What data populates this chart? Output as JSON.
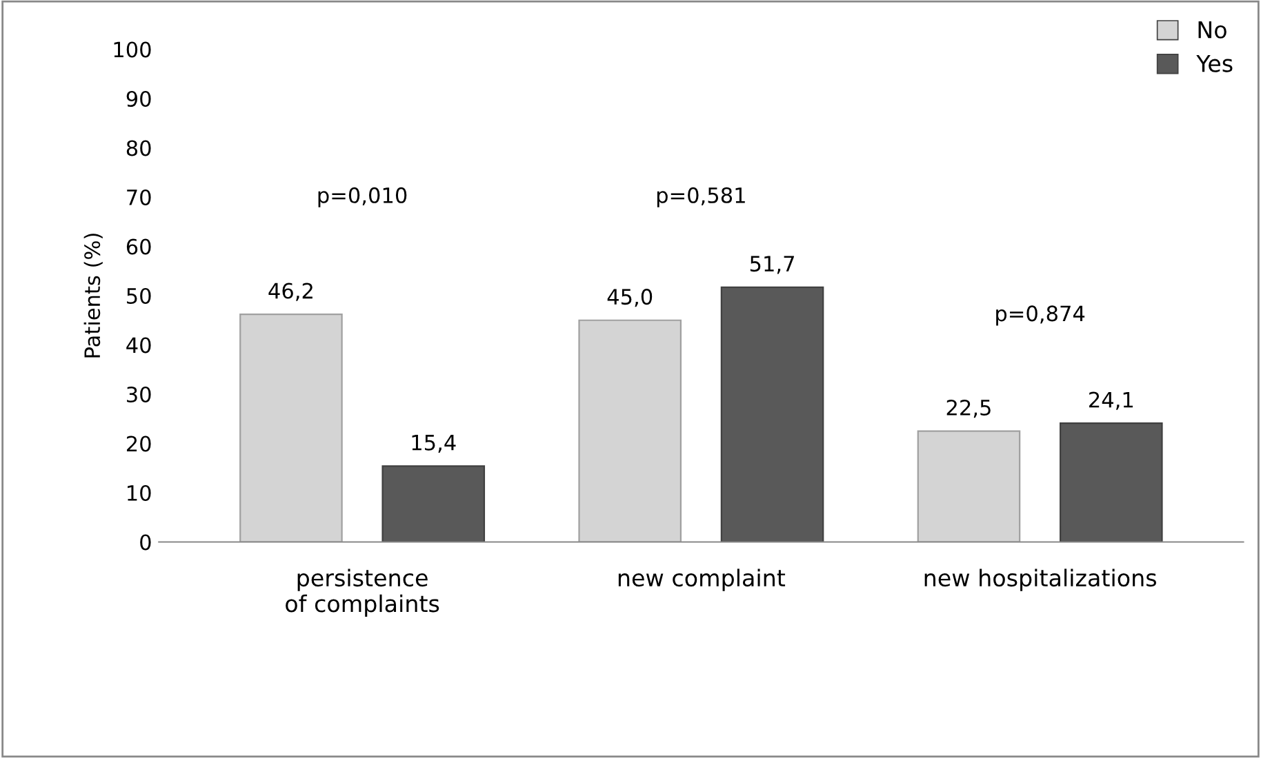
{
  "chart_data": {
    "type": "bar",
    "ylabel": "Patients (%)",
    "categories": [
      "persistence\nof complaints",
      "new complaint",
      "new hospitalizations"
    ],
    "series": [
      {
        "name": "No",
        "color": "#d4d4d4",
        "values": [
          46.2,
          45.0,
          22.5
        ],
        "value_labels": [
          "46,2",
          "45,0",
          "22,5"
        ]
      },
      {
        "name": "Yes",
        "color": "#595959",
        "values": [
          15.4,
          51.7,
          24.1
        ],
        "value_labels": [
          "15,4",
          "51,7",
          "24,1"
        ]
      }
    ],
    "ylim": [
      0,
      100
    ],
    "yticks": [
      0,
      10,
      20,
      30,
      40,
      50,
      60,
      70,
      80,
      90,
      100
    ],
    "grid": false,
    "legend": "top right",
    "annotations": [
      "p=0,010",
      "p=0,581",
      "p=0,874"
    ]
  }
}
